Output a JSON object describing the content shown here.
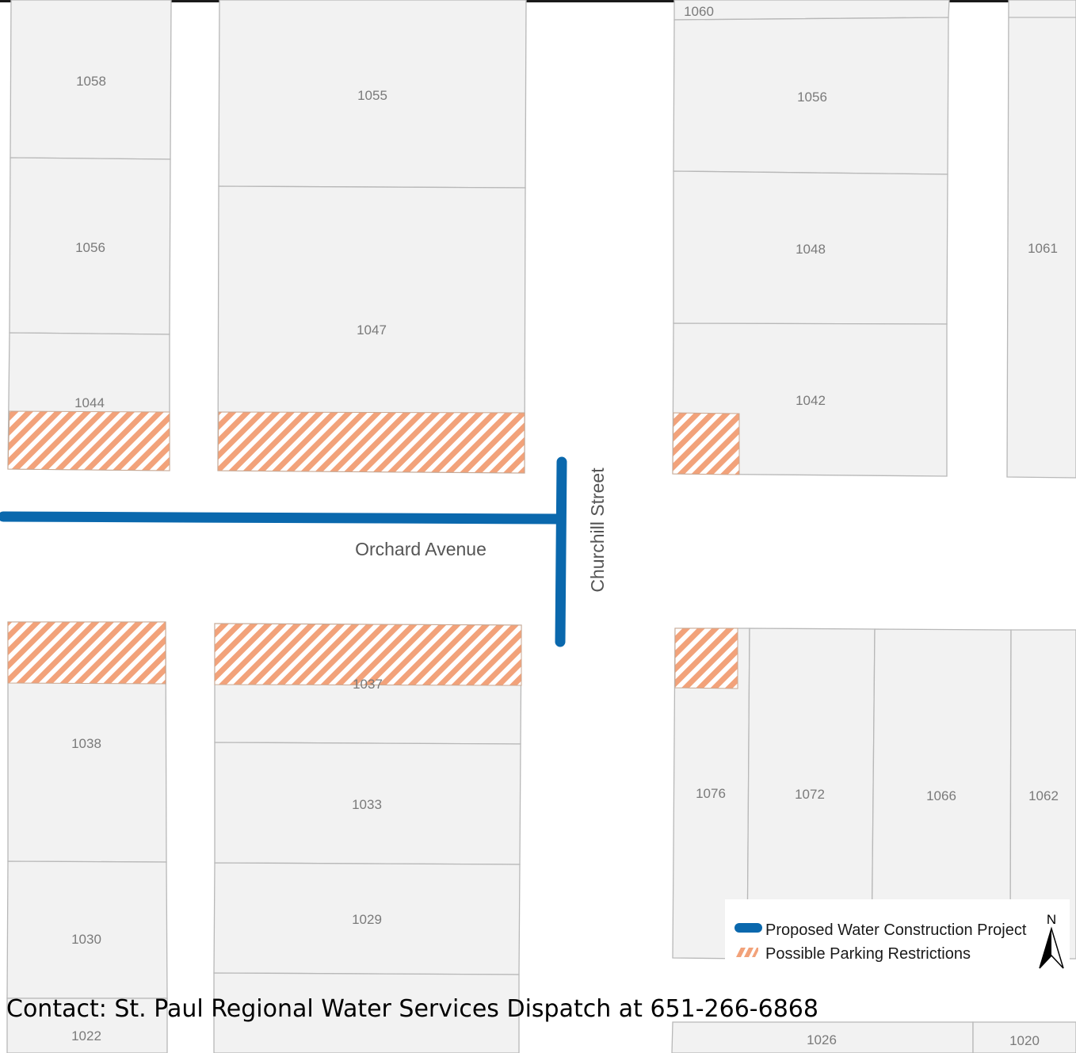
{
  "map": {
    "streets": {
      "horizontal": "Orchard Avenue",
      "vertical": "Churchill Street"
    },
    "parcels": [
      {
        "id": "1060"
      },
      {
        "id": "1058"
      },
      {
        "id": "1055"
      },
      {
        "id": "1056"
      },
      {
        "id": "1056"
      },
      {
        "id": "1047"
      },
      {
        "id": "1048"
      },
      {
        "id": "1061"
      },
      {
        "id": "1044"
      },
      {
        "id": "1042"
      },
      {
        "id": "1038"
      },
      {
        "id": "1037"
      },
      {
        "id": "1033"
      },
      {
        "id": "1029"
      },
      {
        "id": "1030"
      },
      {
        "id": "1022"
      },
      {
        "id": "1076"
      },
      {
        "id": "1072"
      },
      {
        "id": "1066"
      },
      {
        "id": "1062"
      },
      {
        "id": "1026"
      },
      {
        "id": "1020"
      }
    ],
    "legend": {
      "items": [
        {
          "label": "Proposed Water Construction Project",
          "color": "#0a68ad",
          "symbol": "line"
        },
        {
          "label": "Possible Parking Restrictions",
          "color": "#f2a27a",
          "symbol": "hatch"
        }
      ],
      "north_label": "N"
    },
    "contact": "Contact: St. Paul Regional Water Services Dispatch at 651-266-6868"
  }
}
